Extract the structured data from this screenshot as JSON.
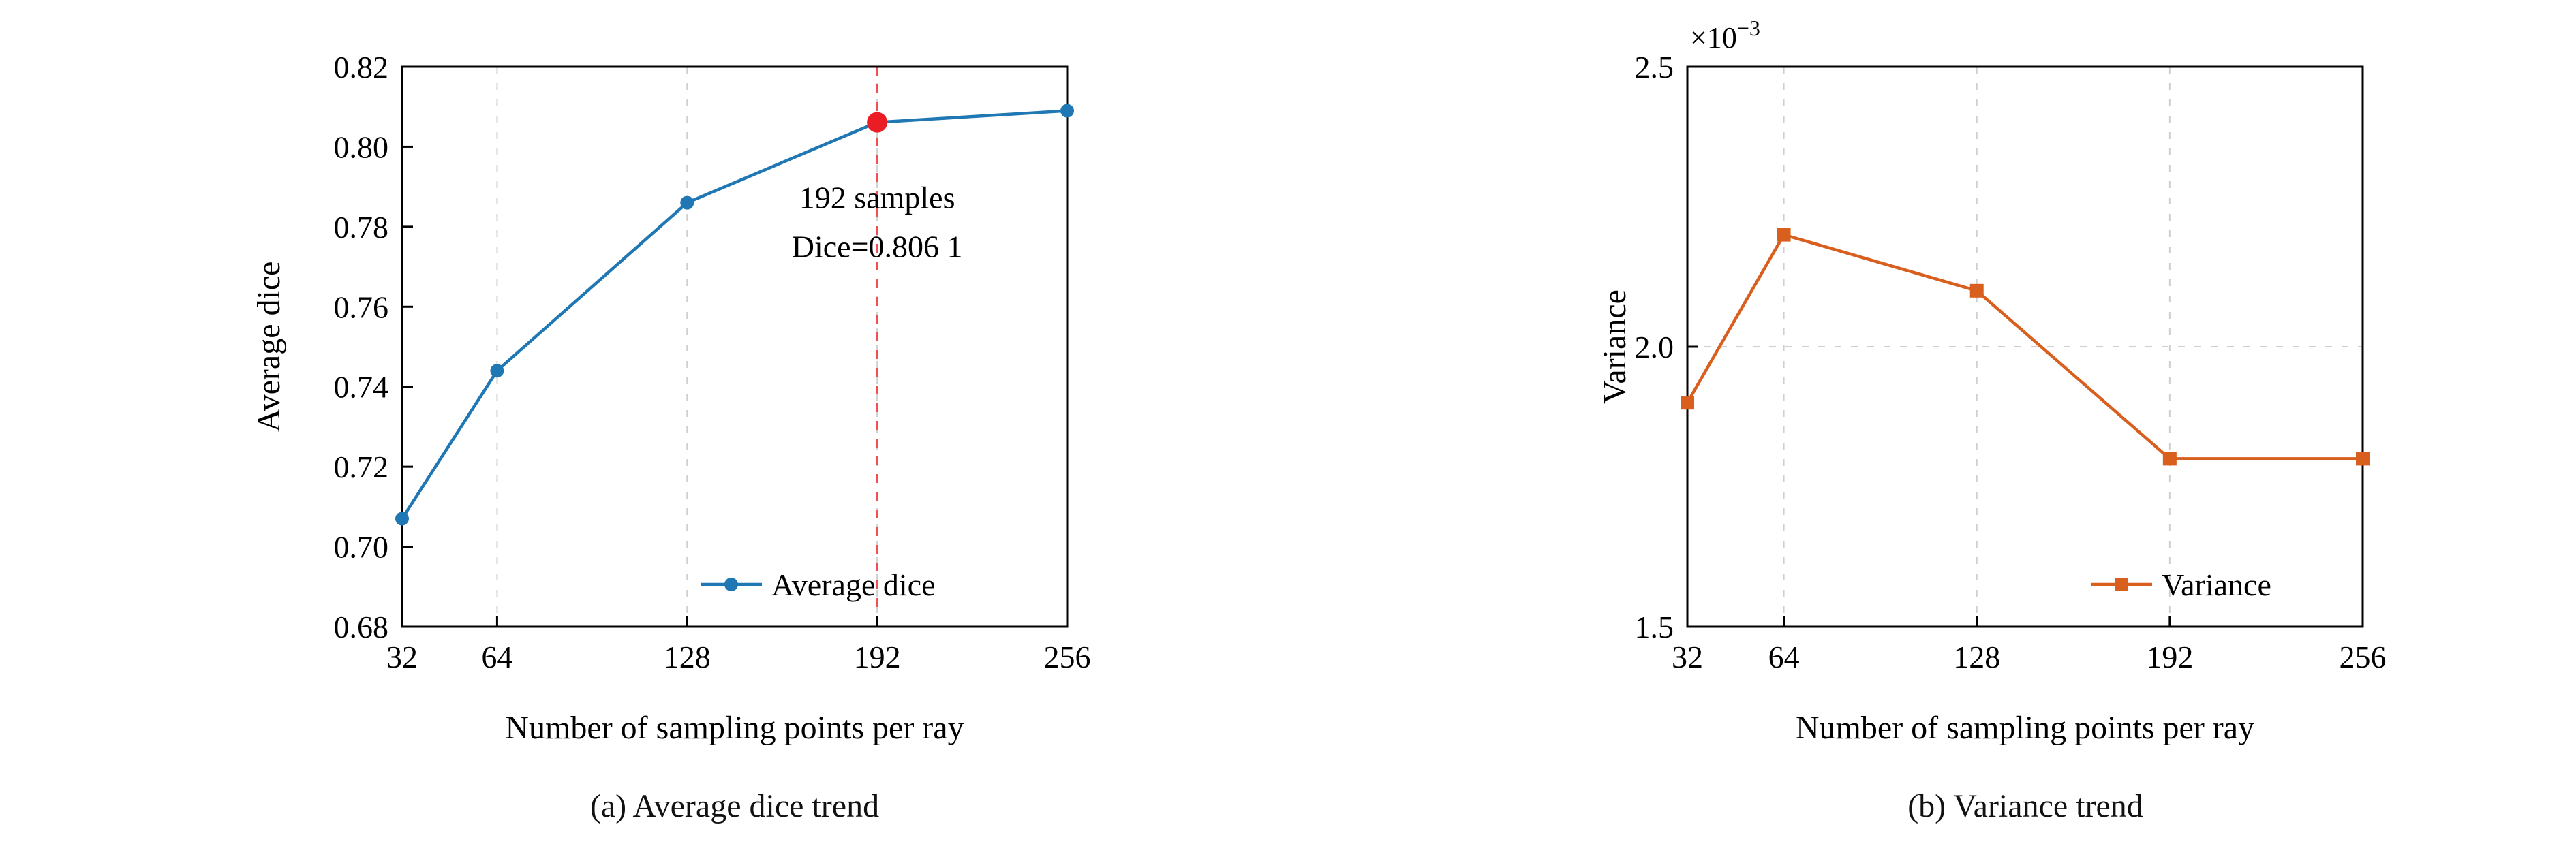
{
  "page": {
    "background": "#ffffff"
  },
  "chart_data": [
    {
      "type": "line",
      "caption": "(a) Average dice trend",
      "xlabel": "Number of sampling points per ray",
      "ylabel": "Average dice",
      "x": [
        32,
        64,
        128,
        192,
        256
      ],
      "xtick_labels": [
        "32",
        "64",
        "128",
        "192",
        "256"
      ],
      "xlim": [
        32,
        256
      ],
      "ylim": [
        0.68,
        0.82
      ],
      "ytick_values": [
        0.68,
        0.7,
        0.72,
        0.74,
        0.76,
        0.78,
        0.8,
        0.82
      ],
      "ytick_labels": [
        "0.68",
        "0.70",
        "0.72",
        "0.74",
        "0.76",
        "0.78",
        "0.80",
        "0.82"
      ],
      "grid": {
        "vertical": [
          64,
          128,
          192
        ],
        "horizontal": []
      },
      "series": [
        {
          "name": "Average dice",
          "marker": "circle",
          "color": "#1f77b4",
          "values": [
            0.707,
            0.744,
            0.786,
            0.8061,
            0.809
          ]
        }
      ],
      "legend": {
        "label": "Average dice",
        "position": "bottom-right"
      },
      "annotation": {
        "x": 192,
        "y": 0.8061,
        "vline_color": "#f05050",
        "dot_color": "#ea1c24",
        "text_color": "#ea1c24",
        "lines": [
          "192 samples",
          "Dice=0.806 1"
        ]
      }
    },
    {
      "type": "line",
      "caption": "(b) Variance trend",
      "xlabel": "Number of sampling points per ray",
      "ylabel": "Variance",
      "y_multiplier": {
        "base": "×10",
        "exp": "−3"
      },
      "x": [
        32,
        64,
        128,
        192,
        256
      ],
      "xtick_labels": [
        "32",
        "64",
        "128",
        "192",
        "256"
      ],
      "xlim": [
        32,
        256
      ],
      "ylim": [
        1.5,
        2.5
      ],
      "ytick_values": [
        1.5,
        2.0,
        2.5
      ],
      "ytick_labels": [
        "1.5",
        "2.0",
        "2.5"
      ],
      "grid": {
        "vertical": [
          64,
          128,
          192
        ],
        "horizontal": [
          2.0
        ]
      },
      "series": [
        {
          "name": "Variance",
          "marker": "square",
          "color": "#d95f1e",
          "values": [
            1.9,
            2.2,
            2.1,
            1.8,
            1.8
          ]
        }
      ],
      "legend": {
        "label": "Variance",
        "position": "bottom-right"
      }
    }
  ]
}
